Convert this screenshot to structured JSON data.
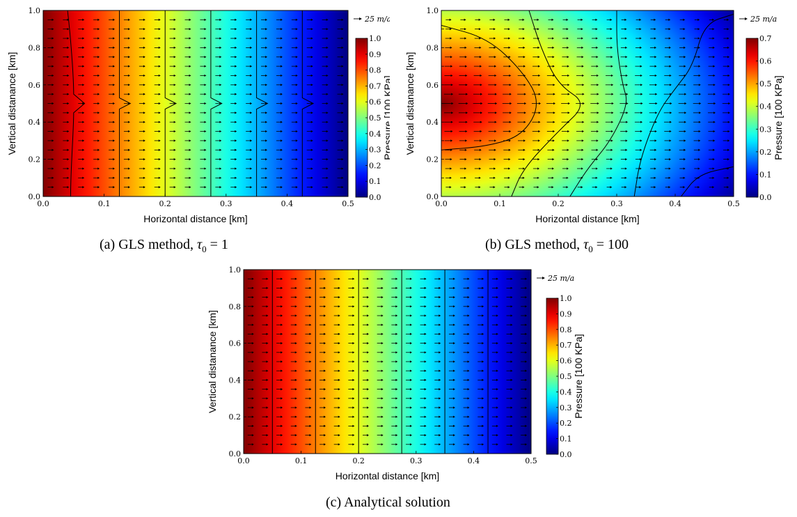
{
  "panels": [
    {
      "id": "a",
      "caption_prefix": "(a)  GLS method, ",
      "caption_tau": "τ",
      "caption_sub": "0",
      "caption_suffix": " = 1"
    },
    {
      "id": "b",
      "caption_prefix": "(b)  GLS method, ",
      "caption_tau": "τ",
      "caption_sub": "0",
      "caption_suffix": " = 100"
    },
    {
      "id": "c",
      "caption_prefix": "(c)  Analytical solution",
      "caption_tau": "",
      "caption_sub": "",
      "caption_suffix": ""
    }
  ],
  "chart_data": [
    {
      "type": "heatmap",
      "title": "",
      "xlabel": "Horizontal distance [km]",
      "ylabel": "Vertical distanance [km]",
      "colorbar_label": "Pressure [100 KPa]",
      "xlim": [
        0.0,
        0.5
      ],
      "ylim": [
        0.0,
        1.0
      ],
      "x_ticks": [
        "0.0",
        "0.1",
        "0.2",
        "0.3",
        "0.4",
        "0.5"
      ],
      "y_ticks": [
        "0.0",
        "0.2",
        "0.4",
        "0.6",
        "0.8",
        "1.0"
      ],
      "colorbar_range": [
        0.0,
        1.0
      ],
      "colorbar_ticks": [
        "0.0",
        "0.1",
        "0.2",
        "0.3",
        "0.4",
        "0.5",
        "0.6",
        "0.7",
        "0.8",
        "0.9",
        "1.0"
      ],
      "colormap": "jet",
      "field": "linear, pressure 1.0 at x=0 to 0.0 at x=0.5",
      "contour_levels": [
        0.9,
        0.75,
        0.6,
        0.45,
        0.3,
        0.15
      ],
      "contour_x_km": [
        0.05,
        0.125,
        0.2,
        0.275,
        0.35,
        0.425
      ],
      "contour_kink_at_y": 0.5,
      "quiver_scale_label": "25 m/a",
      "quiver": "uniform horizontal flow in +x direction"
    },
    {
      "type": "heatmap",
      "title": "",
      "xlabel": "Horizontal distance [km]",
      "ylabel": "Vertical distanance [km]",
      "colorbar_label": "Pressure [100 KPa]",
      "xlim": [
        0.0,
        0.5
      ],
      "ylim": [
        0.0,
        1.0
      ],
      "x_ticks": [
        "0.0",
        "0.1",
        "0.2",
        "0.3",
        "0.4",
        "0.5"
      ],
      "y_ticks": [
        "0.0",
        "0.1",
        "0.2",
        "0.3",
        "0.4",
        "0.5",
        "0.6",
        "0.7",
        "0.8",
        "0.9",
        "1.0"
      ],
      "y_tick_labels_shown": [
        "0.0",
        "0.2",
        "0.4",
        "0.6",
        "0.8",
        "1.0"
      ],
      "colorbar_range": [
        0.0,
        0.7
      ],
      "colorbar_ticks": [
        "0.0",
        "0.1",
        "0.2",
        "0.3",
        "0.4",
        "0.5",
        "0.6",
        "0.7"
      ],
      "colormap": "jet",
      "field": "pressure peak 0.7 at (0, 0.5), decreasing to 0.0 at bottom-right",
      "contour_curves": [
        {
          "points": [
            [
              0.0,
              0.92
            ],
            [
              0.08,
              0.85
            ],
            [
              0.14,
              0.67
            ],
            [
              0.17,
              0.5
            ],
            [
              0.14,
              0.33
            ],
            [
              0.08,
              0.27
            ],
            [
              0.0,
              0.25
            ]
          ]
        },
        {
          "points": [
            [
              0.15,
              1.0
            ],
            [
              0.17,
              0.8
            ],
            [
              0.2,
              0.6
            ],
            [
              0.25,
              0.5
            ],
            [
              0.2,
              0.35
            ],
            [
              0.14,
              0.15
            ],
            [
              0.12,
              0.0
            ]
          ]
        },
        {
          "points": [
            [
              0.3,
              1.0
            ],
            [
              0.3,
              0.8
            ],
            [
              0.31,
              0.6
            ],
            [
              0.32,
              0.5
            ],
            [
              0.29,
              0.3
            ],
            [
              0.25,
              0.15
            ],
            [
              0.22,
              0.0
            ]
          ]
        },
        {
          "points": [
            [
              0.5,
              0.98
            ],
            [
              0.45,
              0.93
            ],
            [
              0.43,
              0.7
            ],
            [
              0.4,
              0.58
            ],
            [
              0.37,
              0.45
            ],
            [
              0.34,
              0.2
            ],
            [
              0.33,
              0.0
            ]
          ]
        },
        {
          "points": [
            [
              0.5,
              0.16
            ],
            [
              0.44,
              0.12
            ],
            [
              0.41,
              0.0
            ]
          ]
        }
      ],
      "quiver_scale_label": "25 m/a",
      "quiver": "horizontal flow in +x direction"
    },
    {
      "type": "heatmap",
      "title": "",
      "xlabel": "Horizontal distance [km]",
      "ylabel": "Vertical distanance [km]",
      "colorbar_label": "Pressure [100 KPa]",
      "xlim": [
        0.0,
        0.5
      ],
      "ylim": [
        0.0,
        1.0
      ],
      "x_ticks": [
        "0.0",
        "0.1",
        "0.2",
        "0.3",
        "0.4",
        "0.5"
      ],
      "y_ticks": [
        "0.0",
        "0.2",
        "0.4",
        "0.6",
        "0.8",
        "1.0"
      ],
      "colorbar_range": [
        0.0,
        1.0
      ],
      "colorbar_ticks": [
        "0.0",
        "0.1",
        "0.2",
        "0.3",
        "0.4",
        "0.5",
        "0.6",
        "0.7",
        "0.8",
        "0.9",
        "1.0"
      ],
      "colormap": "jet",
      "field": "linear, pressure 1.0 at x=0 to 0.0 at x=0.5",
      "contour_levels": [
        0.9,
        0.75,
        0.6,
        0.45,
        0.3,
        0.15
      ],
      "contour_x_km": [
        0.05,
        0.125,
        0.2,
        0.275,
        0.35,
        0.425
      ],
      "quiver_scale_label": "25 m/a",
      "quiver": "uniform horizontal flow in +x direction"
    }
  ]
}
